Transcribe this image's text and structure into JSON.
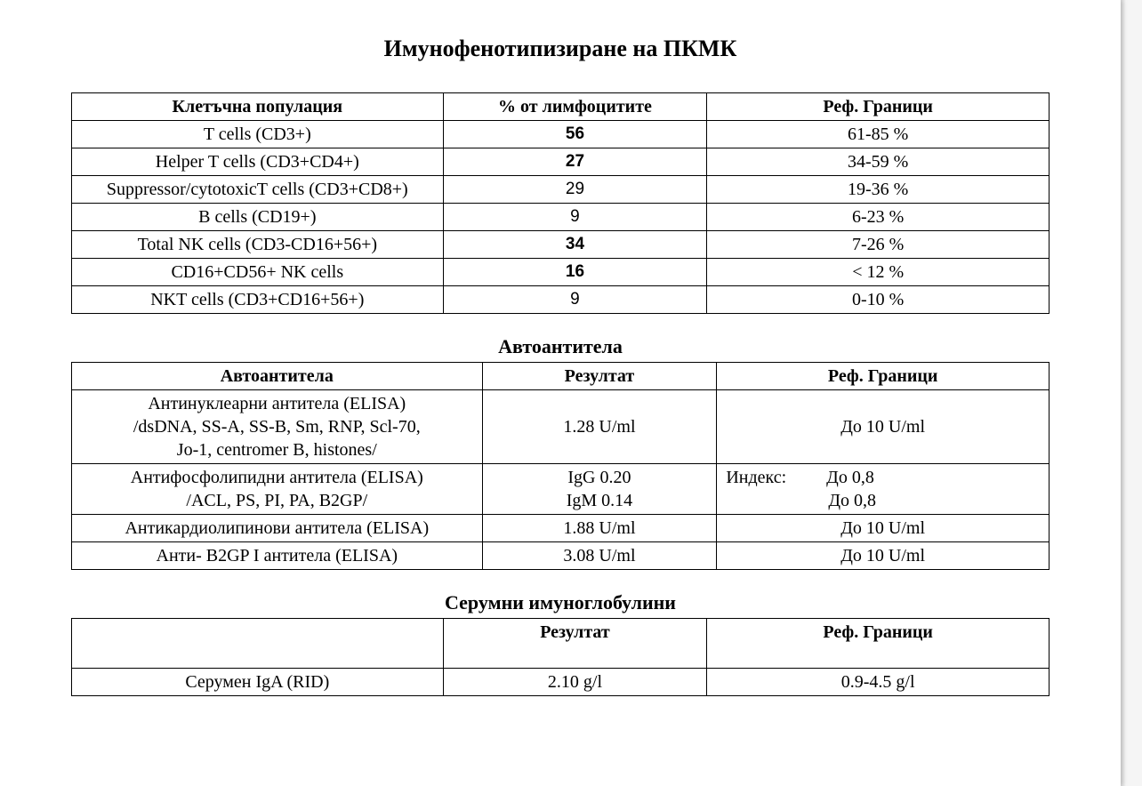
{
  "title": "Имунофенотипизиране на ПКМК",
  "table1": {
    "columns": [
      "Клетъчна популация",
      "%  от лимфоцитите",
      "Реф. Граници"
    ],
    "col_widths": [
      "38%",
      "27%",
      "35%"
    ],
    "rows": [
      {
        "name": "T cells (CD3+)",
        "value": "56",
        "bold": true,
        "ref": "61-85 %"
      },
      {
        "name": "Helper T cells (CD3+CD4+)",
        "value": "27",
        "bold": true,
        "ref": "34-59 %"
      },
      {
        "name": "Suppressor/cytotoxicT cells (CD3+CD8+)",
        "value": "29",
        "bold": false,
        "ref": "19-36 %"
      },
      {
        "name": "B cells (CD19+)",
        "value": "9",
        "bold": false,
        "ref": "6-23 %"
      },
      {
        "name": "Total NK cells  (CD3-CD16+56+)",
        "value": "34",
        "bold": true,
        "ref": "7-26 %"
      },
      {
        "name": "CD16+CD56+   NK cells",
        "value": "16",
        "bold": true,
        "ref": "< 12 %"
      },
      {
        "name": "NKT cells (CD3+CD16+56+)",
        "value": "9",
        "bold": false,
        "ref": "0-10 %"
      }
    ]
  },
  "section2_title": "Автоантитела",
  "table2": {
    "columns": [
      "Автоантитела",
      "Резултат",
      "Реф. Граници"
    ],
    "col_widths": [
      "42%",
      "24%",
      "34%"
    ],
    "rows": [
      {
        "name": "Антинуклеарни антитела  (ELISA)\n/dsDNA, SS-A, SS-B, Sm, RNP, Scl-70,\nJo-1, centromer B, histones/",
        "value": "1.28 U/ml",
        "ref": "До 10 U/ml",
        "ref_align": "center"
      },
      {
        "name": "Антифосфолипидни  антитела (ELISA)\n/ACL, PS, PI, PA, B2GP/",
        "value": "IgG 0.20\nIgM 0.14",
        "ref": "Индекс:         До 0,8\n                       До 0,8",
        "ref_align": "left"
      },
      {
        "name": "Антикардиолипинови антитела (ELISA)",
        "value": "1.88 U/ml",
        "ref": "До 10 U/ml",
        "ref_align": "center"
      },
      {
        "name": "Анти- B2GP I  антитела (ELISA)",
        "value": "3.08 U/ml",
        "ref": "До 10 U/ml",
        "ref_align": "center"
      }
    ]
  },
  "section3_title": "Серумни имуноглобулини",
  "table3": {
    "columns": [
      "",
      "Резултат",
      "Реф. Граници"
    ],
    "col_widths": [
      "38%",
      "27%",
      "35%"
    ],
    "rows": [
      {
        "name": "Серумен IgA    (RID)",
        "value": "2.10 g/l",
        "ref": "0.9-4.5 g/l"
      }
    ]
  },
  "styling": {
    "background_color": "#ffffff",
    "border_color": "#000000",
    "text_color": "#000000",
    "title_fontsize": 26,
    "section_title_fontsize": 22,
    "cell_fontsize": 20,
    "font_family_body": "Times New Roman",
    "font_family_values": "Arial"
  }
}
